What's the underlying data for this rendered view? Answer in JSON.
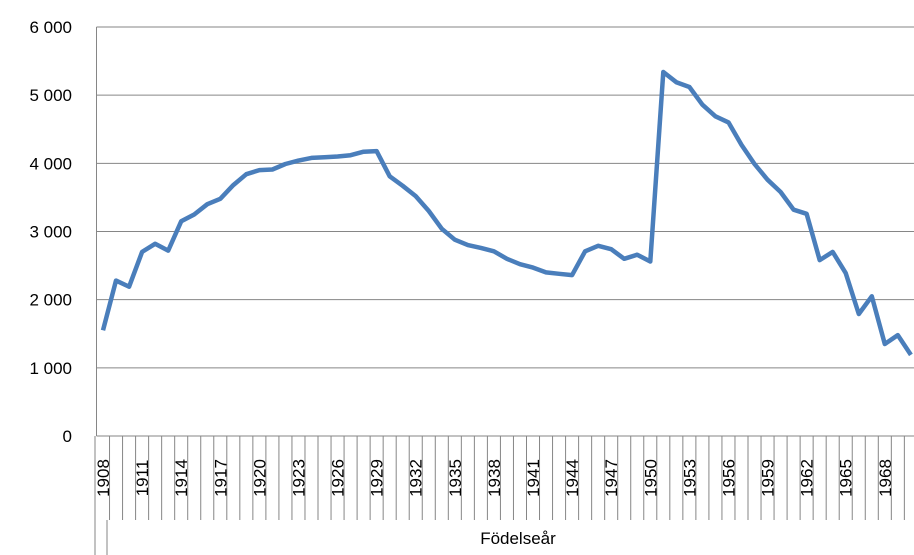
{
  "chart_data": {
    "type": "line",
    "x_axis_title": "Födelseår",
    "categories": [
      "1908",
      null,
      null,
      "1911",
      null,
      null,
      "1914",
      null,
      null,
      "1917",
      null,
      null,
      "1920",
      null,
      null,
      "1923",
      null,
      null,
      "1926",
      null,
      null,
      "1929",
      null,
      null,
      "1932",
      null,
      null,
      "1935",
      null,
      null,
      "1938",
      null,
      null,
      "1941",
      null,
      null,
      "1944",
      null,
      null,
      "1947",
      null,
      null,
      "1950",
      null,
      null,
      "1953",
      null,
      null,
      "1956",
      null,
      null,
      "1959",
      null,
      null,
      "1962",
      null,
      null,
      "1965",
      null,
      null,
      "1968",
      null,
      null
    ],
    "series": [
      {
        "name": null,
        "color": "#4a7ebb",
        "values": [
          1550,
          2280,
          2190,
          2700,
          2820,
          2720,
          3150,
          3250,
          3400,
          3480,
          3680,
          3840,
          3900,
          3910,
          3990,
          4040,
          4080,
          4090,
          4100,
          4120,
          4170,
          4180,
          3810,
          3670,
          3520,
          3300,
          3040,
          2880,
          2800,
          2760,
          2710,
          2600,
          2520,
          2470,
          2400,
          2380,
          2360,
          2710,
          2790,
          2740,
          2600,
          2660,
          2560,
          5340,
          5190,
          5120,
          4860,
          4690,
          4600,
          4270,
          3990,
          3760,
          3580,
          3320,
          3260,
          2580,
          2700,
          2390,
          1790,
          2050,
          1350,
          1480,
          1190
        ]
      }
    ],
    "ylim": [
      0,
      6000
    ],
    "yticks": [
      0,
      {
        "value": 1000,
        "label": "1 000"
      },
      {
        "value": 2000,
        "label": "2 000"
      },
      {
        "value": 3000,
        "label": "3 000"
      },
      {
        "value": 4000,
        "label": "4 000"
      },
      {
        "value": 5000,
        "label": "5 000"
      },
      {
        "value": 6000,
        "label": "6 000"
      }
    ],
    "grid": true
  }
}
